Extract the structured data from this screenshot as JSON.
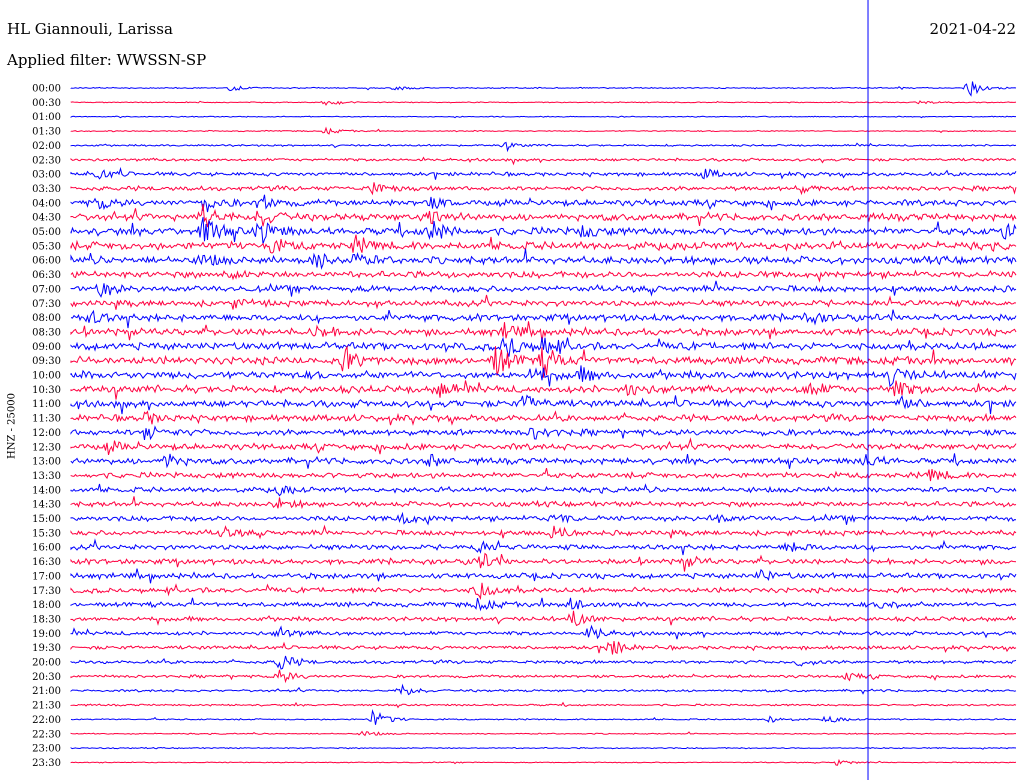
{
  "header": {
    "station": "HL Giannouli, Larissa",
    "date": "2021-04-22",
    "filter": "Applied filter: WWSSN-SP"
  },
  "chart_data": {
    "type": "line",
    "subtype": "helicorder",
    "ylabel": "HNZ - 25000",
    "rows": [
      "00:00",
      "00:30",
      "01:00",
      "01:30",
      "02:00",
      "02:30",
      "03:00",
      "03:30",
      "04:00",
      "04:30",
      "05:00",
      "05:30",
      "06:00",
      "06:30",
      "07:00",
      "07:30",
      "08:00",
      "08:30",
      "09:00",
      "09:30",
      "10:00",
      "10:30",
      "11:00",
      "11:30",
      "12:00",
      "12:30",
      "13:00",
      "13:30",
      "14:00",
      "14:30",
      "15:00",
      "15:30",
      "16:00",
      "16:30",
      "17:00",
      "17:30",
      "18:00",
      "18:30",
      "19:00",
      "19:30",
      "20:00",
      "20:30",
      "21:00",
      "21:30",
      "22:00",
      "22:30",
      "23:00",
      "23:30"
    ],
    "row_colors": [
      "#0000ff",
      "#ff0040"
    ],
    "noise_level": [
      0.5,
      0.4,
      0.4,
      0.5,
      0.8,
      1.2,
      1.6,
      1.9,
      2.6,
      3.0,
      3.2,
      3.4,
      3.2,
      2.8,
      2.7,
      2.6,
      2.9,
      3.0,
      3.2,
      3.3,
      3.3,
      3.1,
      3.0,
      2.8,
      2.6,
      2.6,
      2.6,
      2.4,
      2.2,
      2.2,
      2.2,
      2.2,
      2.2,
      2.3,
      2.3,
      2.2,
      2.0,
      1.9,
      1.7,
      1.6,
      1.4,
      1.2,
      1.0,
      0.8,
      0.6,
      0.5,
      0.5,
      0.4
    ],
    "current_time_fraction": 0.8434,
    "events": [
      [
        0,
        0.95,
        10
      ],
      [
        0,
        0.17,
        3
      ],
      [
        0,
        0.34,
        3
      ],
      [
        1,
        0.27,
        2.5
      ],
      [
        1,
        0.9,
        2.5
      ],
      [
        3,
        0.27,
        3
      ],
      [
        4,
        0.46,
        3
      ],
      [
        6,
        0.03,
        6
      ],
      [
        6,
        0.67,
        5
      ],
      [
        7,
        0.32,
        6
      ],
      [
        7,
        0.77,
        4
      ],
      [
        8,
        0.03,
        6
      ],
      [
        8,
        0.14,
        9
      ],
      [
        8,
        0.2,
        8
      ],
      [
        8,
        0.38,
        5
      ],
      [
        9,
        0.14,
        12
      ],
      [
        9,
        0.2,
        10
      ],
      [
        9,
        0.38,
        8
      ],
      [
        10,
        0.14,
        14
      ],
      [
        10,
        0.2,
        12
      ],
      [
        10,
        0.38,
        12
      ],
      [
        10,
        0.54,
        6
      ],
      [
        10,
        0.99,
        9
      ],
      [
        11,
        0.21,
        6
      ],
      [
        11,
        0.3,
        8
      ],
      [
        12,
        0.26,
        8
      ],
      [
        12,
        0.3,
        6
      ],
      [
        12,
        0.14,
        5
      ],
      [
        13,
        0.16,
        5
      ],
      [
        14,
        0.03,
        7
      ],
      [
        15,
        0.17,
        4
      ],
      [
        16,
        0.02,
        6
      ],
      [
        16,
        0.78,
        5
      ],
      [
        17,
        0.26,
        6
      ],
      [
        17,
        0.46,
        8
      ],
      [
        18,
        0.46,
        12
      ],
      [
        18,
        0.5,
        10
      ],
      [
        19,
        0.29,
        12
      ],
      [
        19,
        0.45,
        16
      ],
      [
        19,
        0.5,
        14
      ],
      [
        20,
        0.49,
        10
      ],
      [
        20,
        0.54,
        6
      ],
      [
        20,
        0.87,
        8
      ],
      [
        21,
        0.39,
        6
      ],
      [
        21,
        0.59,
        6
      ],
      [
        21,
        0.78,
        8
      ],
      [
        21,
        0.87,
        10
      ],
      [
        22,
        0.48,
        8
      ],
      [
        22,
        0.88,
        6
      ],
      [
        23,
        0.08,
        5
      ],
      [
        24,
        0.08,
        8
      ],
      [
        24,
        0.49,
        6
      ],
      [
        25,
        0.04,
        5
      ],
      [
        26,
        0.1,
        7
      ],
      [
        26,
        0.38,
        5
      ],
      [
        26,
        0.84,
        6
      ],
      [
        27,
        0.91,
        6
      ],
      [
        28,
        0.22,
        4
      ],
      [
        29,
        0.22,
        5
      ],
      [
        30,
        0.35,
        6
      ],
      [
        30,
        0.51,
        5
      ],
      [
        30,
        0.68,
        5
      ],
      [
        31,
        0.16,
        5
      ],
      [
        31,
        0.51,
        6
      ],
      [
        32,
        0.43,
        6
      ],
      [
        32,
        0.76,
        6
      ],
      [
        33,
        0.43,
        10
      ],
      [
        33,
        0.65,
        5
      ],
      [
        34,
        0.73,
        5
      ],
      [
        35,
        0.43,
        10
      ],
      [
        36,
        0.43,
        6
      ],
      [
        36,
        0.53,
        8
      ],
      [
        36,
        0.86,
        6
      ],
      [
        37,
        0.53,
        8
      ],
      [
        38,
        0.55,
        7
      ],
      [
        38,
        0.22,
        6
      ],
      [
        39,
        0.57,
        9
      ],
      [
        40,
        0.22,
        10
      ],
      [
        40,
        0.77,
        4
      ],
      [
        41,
        0.22,
        8
      ],
      [
        41,
        0.82,
        4
      ],
      [
        42,
        0.35,
        6
      ],
      [
        44,
        0.32,
        10
      ],
      [
        44,
        0.74,
        4
      ],
      [
        44,
        0.8,
        4
      ],
      [
        45,
        0.31,
        3
      ],
      [
        47,
        0.81,
        3
      ]
    ]
  }
}
